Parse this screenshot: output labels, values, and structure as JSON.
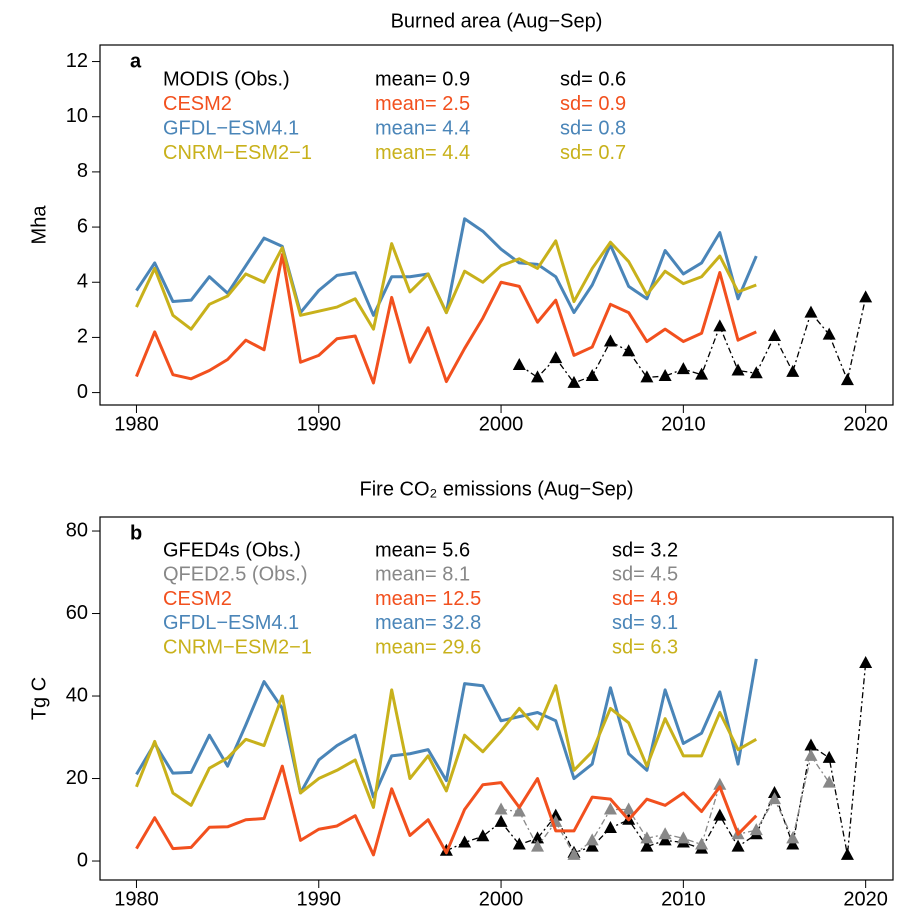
{
  "chart_data": [
    {
      "type": "line",
      "panel": "a",
      "title": "Burned area (Aug−Sep)",
      "ylabel": "Mha",
      "xlim": [
        1978,
        2021.5
      ],
      "xticks": [
        1980,
        1990,
        2000,
        2010,
        2020
      ],
      "ylim": [
        -0.45,
        12.6
      ],
      "yticks": [
        0,
        2,
        4,
        6,
        8,
        10,
        12
      ],
      "series": [
        {
          "name": "MODIS (Obs.)",
          "color": "#000000",
          "dashed": true,
          "marker": "triangle",
          "mean_text": "mean= 0.9",
          "sd_text": "sd= 0.6",
          "x": [
            2001,
            2002,
            2003,
            2004,
            2005,
            2006,
            2007,
            2008,
            2009,
            2010,
            2011,
            2012,
            2013,
            2014,
            2015,
            2016,
            2017,
            2018,
            2019,
            2020
          ],
          "values": [
            1.0,
            0.55,
            1.25,
            0.35,
            0.6,
            1.85,
            1.5,
            0.55,
            0.6,
            0.85,
            0.65,
            2.4,
            0.8,
            0.7,
            2.05,
            0.75,
            2.9,
            2.1,
            0.45,
            3.45
          ]
        },
        {
          "name": "CESM2",
          "color": "#f2501e",
          "mean_text": "mean= 2.5",
          "sd_text": "sd= 0.9",
          "x": [
            1980,
            1981,
            1982,
            1983,
            1984,
            1985,
            1986,
            1987,
            1988,
            1989,
            1990,
            1991,
            1992,
            1993,
            1994,
            1995,
            1996,
            1997,
            1998,
            1999,
            2000,
            2001,
            2002,
            2003,
            2004,
            2005,
            2006,
            2007,
            2008,
            2009,
            2010,
            2011,
            2012,
            2013,
            2014
          ],
          "values": [
            0.58,
            2.2,
            0.65,
            0.5,
            0.8,
            1.2,
            1.9,
            1.55,
            5.0,
            1.1,
            1.35,
            1.95,
            2.05,
            0.35,
            3.45,
            1.1,
            2.35,
            0.4,
            1.6,
            2.7,
            4.0,
            3.85,
            2.55,
            3.35,
            1.35,
            1.65,
            3.2,
            2.9,
            1.85,
            2.3,
            1.85,
            2.15,
            4.35,
            1.9,
            2.2
          ]
        },
        {
          "name": "GFDL−ESM4.1",
          "color": "#4a85b8",
          "mean_text": "mean= 4.4",
          "sd_text": "sd= 0.8",
          "x": [
            1980,
            1981,
            1982,
            1983,
            1984,
            1985,
            1986,
            1987,
            1988,
            1989,
            1990,
            1991,
            1992,
            1993,
            1994,
            1995,
            1996,
            1997,
            1998,
            1999,
            2000,
            2001,
            2002,
            2003,
            2004,
            2005,
            2006,
            2007,
            2008,
            2009,
            2010,
            2011,
            2012,
            2013,
            2014
          ],
          "values": [
            3.7,
            4.7,
            3.3,
            3.35,
            4.2,
            3.6,
            4.6,
            5.6,
            5.3,
            2.9,
            3.7,
            4.25,
            4.35,
            2.8,
            4.2,
            4.2,
            4.3,
            2.9,
            6.3,
            5.85,
            5.2,
            4.7,
            4.65,
            4.2,
            2.9,
            3.9,
            5.35,
            3.85,
            3.4,
            5.15,
            4.3,
            4.7,
            5.8,
            3.4,
            4.95
          ]
        },
        {
          "name": "CNRM−ESM2−1",
          "color": "#c8b11b",
          "mean_text": "mean= 4.4",
          "sd_text": "sd= 0.7",
          "x": [
            1980,
            1981,
            1982,
            1983,
            1984,
            1985,
            1986,
            1987,
            1988,
            1989,
            1990,
            1991,
            1992,
            1993,
            1994,
            1995,
            1996,
            1997,
            1998,
            1999,
            2000,
            2001,
            2002,
            2003,
            2004,
            2005,
            2006,
            2007,
            2008,
            2009,
            2010,
            2011,
            2012,
            2013,
            2014
          ],
          "values": [
            3.1,
            4.5,
            2.8,
            2.3,
            3.2,
            3.5,
            4.3,
            4.0,
            5.25,
            2.8,
            2.95,
            3.1,
            3.4,
            2.3,
            5.4,
            3.65,
            4.3,
            2.9,
            4.4,
            4.0,
            4.6,
            4.85,
            4.5,
            5.5,
            3.3,
            4.5,
            5.45,
            4.75,
            3.55,
            4.4,
            3.95,
            4.2,
            4.95,
            3.65,
            3.9
          ]
        }
      ]
    },
    {
      "type": "line",
      "panel": "b",
      "title": "Fire CO₂ emissions (Aug−Sep)",
      "ylabel": "Tg C",
      "xlim": [
        1978,
        2021.5
      ],
      "xticks": [
        1980,
        1990,
        2000,
        2010,
        2020
      ],
      "ylim": [
        -4.6,
        83.4
      ],
      "yticks": [
        0,
        20,
        40,
        60,
        80
      ],
      "series": [
        {
          "name": "GFED4s (Obs.)",
          "color": "#000000",
          "dashed": true,
          "marker": "triangle",
          "mean_text": "mean= 5.6",
          "sd_text": "sd= 3.2",
          "x": [
            1997,
            1998,
            1999,
            2000,
            2001,
            2002,
            2003,
            2004,
            2005,
            2006,
            2007,
            2008,
            2009,
            2010,
            2011,
            2012,
            2013,
            2014,
            2015,
            2016,
            2017,
            2018,
            2019,
            2020
          ],
          "values": [
            2.5,
            4.5,
            6,
            9.5,
            4,
            5.5,
            11,
            2,
            3.5,
            8,
            10,
            3.5,
            5,
            4.5,
            3,
            11,
            3.5,
            6.5,
            16.5,
            4,
            28,
            25,
            1.5,
            48
          ]
        },
        {
          "name": "QFED2.5 (Obs.)",
          "color": "#888888",
          "dashed": true,
          "marker": "triangle",
          "mean_text": "mean= 8.1",
          "sd_text": "sd= 4.5",
          "x": [
            2000,
            2001,
            2002,
            2003,
            2004,
            2005,
            2006,
            2007,
            2008,
            2009,
            2010,
            2011,
            2012,
            2013,
            2014,
            2015,
            2016,
            2017,
            2018
          ],
          "values": [
            12.5,
            12,
            3.5,
            9.5,
            1.5,
            5,
            12.5,
            12.5,
            5.5,
            6.5,
            5.5,
            4,
            18.5,
            6.5,
            7.5,
            15,
            5.5,
            25.5,
            19
          ]
        },
        {
          "name": "CESM2",
          "color": "#f2501e",
          "mean_text": "mean= 12.5",
          "sd_text": "sd= 4.9",
          "x": [
            1980,
            1981,
            1982,
            1983,
            1984,
            1985,
            1986,
            1987,
            1988,
            1989,
            1990,
            1991,
            1992,
            1993,
            1994,
            1995,
            1996,
            1997,
            1998,
            1999,
            2000,
            2001,
            2002,
            2003,
            2004,
            2005,
            2006,
            2007,
            2008,
            2009,
            2010,
            2011,
            2012,
            2013,
            2014
          ],
          "values": [
            3,
            10.5,
            3,
            3.3,
            8.2,
            8.3,
            10,
            10.3,
            23,
            5,
            7.7,
            8.5,
            11,
            1.5,
            17.5,
            6.2,
            10,
            2,
            12.5,
            18.5,
            19,
            13,
            20,
            7.3,
            7.3,
            15.5,
            15,
            10,
            15,
            13.5,
            16.5,
            12,
            18,
            6.5,
            11
          ]
        },
        {
          "name": "GFDL−ESM4.1",
          "color": "#4a85b8",
          "mean_text": "mean= 32.8",
          "sd_text": "sd= 9.1",
          "x": [
            1980,
            1981,
            1982,
            1983,
            1984,
            1985,
            1986,
            1987,
            1988,
            1989,
            1990,
            1991,
            1992,
            1993,
            1994,
            1995,
            1996,
            1997,
            1998,
            1999,
            2000,
            2001,
            2002,
            2003,
            2004,
            2005,
            2006,
            2007,
            2008,
            2009,
            2010,
            2011,
            2012,
            2013,
            2014
          ],
          "values": [
            21,
            28.5,
            21.3,
            21.5,
            30.5,
            23,
            33,
            43.5,
            37,
            16.5,
            24.5,
            28,
            30.5,
            15.5,
            25.5,
            26,
            27,
            19.5,
            43,
            42.5,
            34,
            35,
            36,
            34,
            20,
            23.5,
            42,
            26,
            22,
            41.5,
            28.5,
            31,
            41,
            23.5,
            49
          ]
        },
        {
          "name": "CNRM−ESM2−1",
          "color": "#c8b11b",
          "mean_text": "mean= 29.6",
          "sd_text": "sd= 6.3",
          "x": [
            1980,
            1981,
            1982,
            1983,
            1984,
            1985,
            1986,
            1987,
            1988,
            1989,
            1990,
            1991,
            1992,
            1993,
            1994,
            1995,
            1996,
            1997,
            1998,
            1999,
            2000,
            2001,
            2002,
            2003,
            2004,
            2005,
            2006,
            2007,
            2008,
            2009,
            2010,
            2011,
            2012,
            2013,
            2014
          ],
          "values": [
            18,
            29,
            16.5,
            13.5,
            22.5,
            25,
            29.5,
            28,
            40,
            16.5,
            20,
            22,
            24.5,
            13,
            41.5,
            20,
            25.5,
            17,
            30.5,
            26.5,
            31.5,
            37,
            32,
            42.5,
            22,
            26.5,
            37,
            33.5,
            23,
            34.5,
            25.5,
            25.5,
            36,
            27,
            29.5
          ]
        }
      ]
    }
  ]
}
